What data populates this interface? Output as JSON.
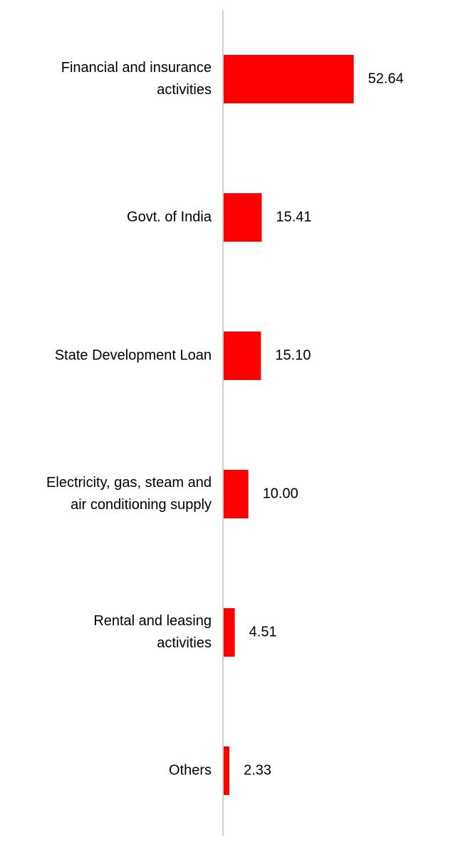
{
  "chart_data": {
    "type": "bar",
    "orientation": "horizontal",
    "categories": [
      [
        "Financial and insurance",
        "activities"
      ],
      [
        "Govt. of India"
      ],
      [
        "State Development Loan"
      ],
      [
        "Electricity, gas, steam and",
        "air conditioning supply"
      ],
      [
        "Rental and leasing",
        "activities"
      ],
      [
        "Others"
      ]
    ],
    "values": [
      52.64,
      15.41,
      15.1,
      10.0,
      4.51,
      2.33
    ],
    "value_labels": [
      "52.64",
      "15.41",
      "15.10",
      "10.00",
      "4.51",
      "2.33"
    ],
    "bar_color": "#ff0000",
    "axis_color": "#d0d0d0",
    "xlim": [
      0,
      100
    ],
    "grid": false,
    "legend": "none"
  }
}
